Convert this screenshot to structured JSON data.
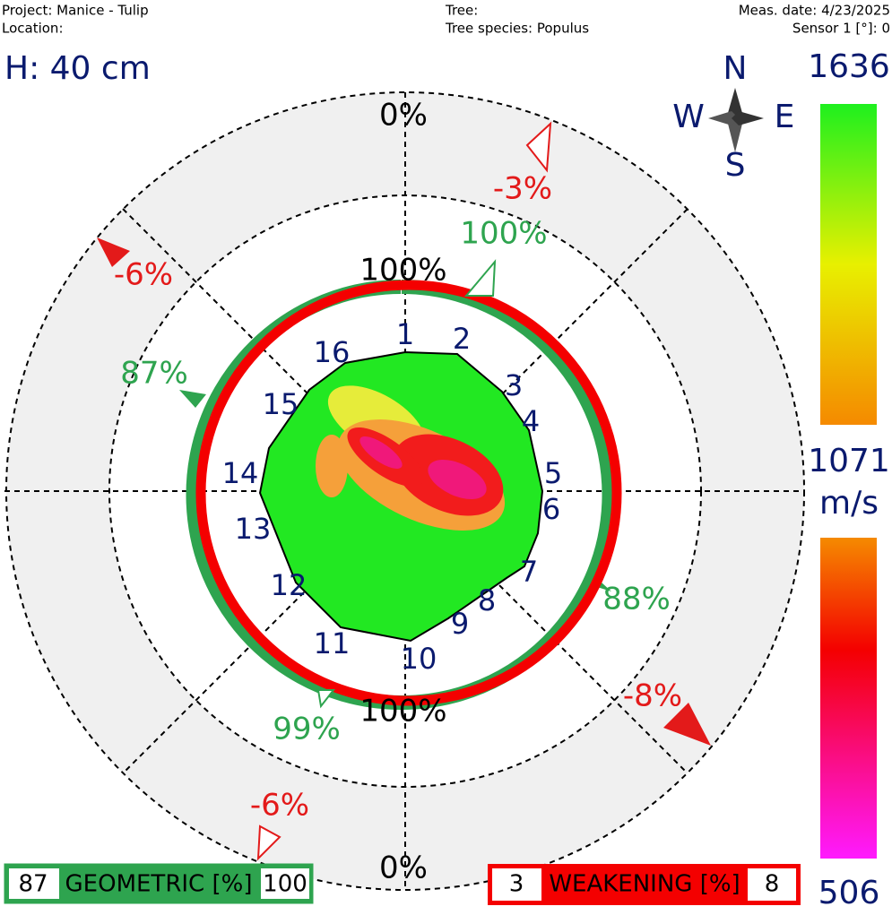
{
  "header": {
    "project": "Project: Manice - Tulip",
    "location": "Location:",
    "tree": "Tree:",
    "species": "Tree species: Populus",
    "date": "Meas. date: 4/23/2025",
    "sensor": "Sensor 1 [°]: 0"
  },
  "height": "H: 40 cm",
  "compass": {
    "n": "N",
    "w": "W",
    "e": "E",
    "s": "S"
  },
  "scale": {
    "max": "1636",
    "mid": "1071",
    "unit": "m/s",
    "min": "506"
  },
  "rings": {
    "outer_top": "0%",
    "inner_top": "100%",
    "inner_bottom": "100%",
    "outer_bottom": "0%"
  },
  "sensors": [
    "1",
    "2",
    "3",
    "4",
    "5",
    "6",
    "7",
    "8",
    "9",
    "10",
    "11",
    "12",
    "13",
    "14",
    "15",
    "16"
  ],
  "geometric_labels": [
    "100%",
    "88%",
    "99%",
    "87%"
  ],
  "weakening_labels": [
    "-3%",
    "-8%",
    "-6%",
    "-6%"
  ],
  "geometric_legend": {
    "min": "87",
    "title": "GEOMETRIC [%]",
    "max": "100"
  },
  "weakening_legend": {
    "min": "3",
    "title": "WEAKENING [%]",
    "max": "8"
  }
}
